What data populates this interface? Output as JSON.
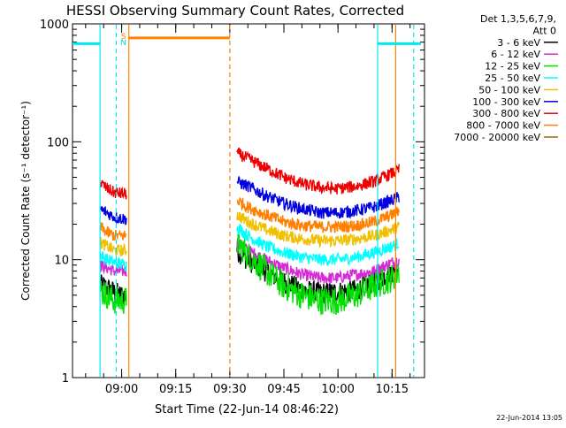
{
  "chart_data": {
    "type": "line",
    "title": "HESSI Observing Summary Count Rates, Corrected",
    "xlabel": "Start Time (22-Jun-14 08:46:22)",
    "ylabel": "Corrected Count Rate (s⁻¹ detector⁻¹)",
    "ylog": true,
    "ylim": [
      1,
      1000
    ],
    "xlim": [
      "08:46:22",
      "10:24:00"
    ],
    "y_ticks": [
      "1",
      "10",
      "100",
      "1000"
    ],
    "x_ticks": [
      {
        "label": "09:00",
        "t": "09:00"
      },
      {
        "label": "09:15",
        "t": "09:15"
      },
      {
        "label": "09:30",
        "t": "09:30"
      },
      {
        "label": "09:45",
        "t": "09:45"
      },
      {
        "label": "10:00",
        "t": "10:00"
      },
      {
        "label": "10:15",
        "t": "10:15"
      }
    ],
    "legend": {
      "header_line1": "Det 1,3,5,6,7,9,",
      "header_line2": "Att 0",
      "placement": "right-outside"
    },
    "series": [
      {
        "name": "3 - 6 keV",
        "color": "#000000",
        "segments": [
          {
            "t": [
              "08:54:00",
              "08:55:00",
              "08:57:00",
              "08:59:30",
              "09:01:20"
            ],
            "v": [
              6,
              6,
              5.5,
              5,
              5
            ]
          },
          {
            "t": [
              "09:32:00",
              "09:35:00",
              "09:40:00",
              "09:45:00",
              "09:50:00",
              "09:55:00",
              "10:00:00",
              "10:05:00",
              "10:10:00",
              "10:15:00",
              "10:17:00"
            ],
            "v": [
              12,
              10,
              8,
              6.5,
              5.5,
              5.2,
              5.3,
              5.5,
              6.5,
              8,
              9
            ]
          }
        ]
      },
      {
        "name": "6 - 12 keV",
        "color": "#d42ad4",
        "segments": [
          {
            "t": [
              "08:54:00",
              "08:56:00",
              "08:58:00",
              "09:01:20"
            ],
            "v": [
              9,
              8.5,
              8,
              8
            ]
          },
          {
            "t": [
              "09:32:00",
              "09:35:00",
              "09:40:00",
              "09:45:00",
              "09:50:00",
              "09:55:00",
              "10:00:00",
              "10:05:00",
              "10:10:00",
              "10:15:00",
              "10:17:00"
            ],
            "v": [
              14,
              12,
              10,
              8.5,
              7.5,
              7,
              7,
              7.5,
              8,
              9.5,
              10
            ]
          }
        ]
      },
      {
        "name": "12 - 25 keV",
        "color": "#00e000",
        "segments": [
          {
            "t": [
              "08:54:00",
              "08:56:00",
              "08:58:00",
              "09:01:20"
            ],
            "v": [
              5.5,
              5,
              4.5,
              4.5
            ]
          },
          {
            "t": [
              "09:32:00",
              "09:35:00",
              "09:40:00",
              "09:45:00",
              "09:50:00",
              "09:55:00",
              "10:00:00",
              "10:05:00",
              "10:10:00",
              "10:15:00",
              "10:17:00"
            ],
            "v": [
              14,
              11,
              8,
              6,
              5,
              4.5,
              4.5,
              5,
              6,
              7,
              8
            ]
          }
        ]
      },
      {
        "name": "25 - 50 keV",
        "color": "#00ffff",
        "segments": [
          {
            "t": [
              "08:54:00",
              "08:56:00",
              "08:58:00",
              "09:01:20"
            ],
            "v": [
              11,
              10,
              9.5,
              9
            ]
          },
          {
            "t": [
              "09:32:00",
              "09:35:00",
              "09:40:00",
              "09:45:00",
              "09:50:00",
              "09:55:00",
              "10:00:00",
              "10:05:00",
              "10:10:00",
              "10:15:00",
              "10:17:00"
            ],
            "v": [
              19,
              16,
              13,
              11.5,
              10.5,
              10,
              10,
              10.5,
              11.5,
              13,
              14
            ]
          }
        ]
      },
      {
        "name": "50 - 100 keV",
        "color": "#f0c000",
        "segments": [
          {
            "t": [
              "08:54:00",
              "08:56:00",
              "08:58:00",
              "09:01:20"
            ],
            "v": [
              14,
              13,
              12,
              12
            ]
          },
          {
            "t": [
              "09:32:00",
              "09:35:00",
              "09:40:00",
              "09:45:00",
              "09:50:00",
              "09:55:00",
              "10:00:00",
              "10:05:00",
              "10:10:00",
              "10:15:00",
              "10:17:00"
            ],
            "v": [
              24,
              21,
              18,
              16,
              15,
              14.5,
              14.5,
              15,
              16,
              18,
              19
            ]
          }
        ]
      },
      {
        "name": "100 - 300 keV",
        "color": "#0000e0",
        "segments": [
          {
            "t": [
              "08:54:00",
              "08:56:00",
              "08:58:00",
              "09:01:20"
            ],
            "v": [
              27,
              25,
              23,
              22
            ]
          },
          {
            "t": [
              "09:32:00",
              "09:35:00",
              "09:40:00",
              "09:45:00",
              "09:50:00",
              "09:55:00",
              "10:00:00",
              "10:05:00",
              "10:10:00",
              "10:15:00",
              "10:17:00"
            ],
            "v": [
              46,
              42,
              35,
              30,
              27,
              25,
              25,
              26,
              28,
              32,
              34
            ]
          }
        ]
      },
      {
        "name": "300 - 800 keV",
        "color": "#ee0000",
        "segments": [
          {
            "t": [
              "08:54:00",
              "08:56:00",
              "08:58:00",
              "09:01:20"
            ],
            "v": [
              45,
              40,
              37,
              36
            ]
          },
          {
            "t": [
              "09:32:00",
              "09:35:00",
              "09:40:00",
              "09:45:00",
              "09:50:00",
              "09:55:00",
              "10:00:00",
              "10:05:00",
              "10:10:00",
              "10:15:00",
              "10:17:00"
            ],
            "v": [
              80,
              72,
              60,
              50,
              44,
              41,
              40,
              42,
              46,
              54,
              58
            ]
          }
        ]
      },
      {
        "name": "800 - 7000 keV",
        "color": "#ff8000",
        "segments": [
          {
            "t": [
              "08:54:00",
              "08:56:00",
              "08:58:00",
              "09:01:20"
            ],
            "v": [
              19,
              17,
              16,
              16
            ]
          },
          {
            "t": [
              "09:32:00",
              "09:35:00",
              "09:40:00",
              "09:45:00",
              "09:50:00",
              "09:55:00",
              "10:00:00",
              "10:05:00",
              "10:10:00",
              "10:15:00",
              "10:17:00"
            ],
            "v": [
              32,
              28,
              24,
              21,
              19.5,
              19,
              19,
              19.5,
              21,
              24,
              26
            ]
          }
        ]
      },
      {
        "name": "7000 - 20000 keV",
        "color": "#9a6a00",
        "segments": []
      }
    ],
    "annotations": {
      "saa_marker_label": "S",
      "night_marker_label": "N",
      "flags": [
        {
          "name": "orange-flag",
          "color": "#ff8000",
          "t0": "09:02:00",
          "t1": "09:30:00",
          "v": 760
        },
        {
          "name": "cyan-flag-left",
          "color": "#00e8f0",
          "t0": "08:46:22",
          "t1": "08:54:00",
          "v": 680
        },
        {
          "name": "cyan-flag-right",
          "color": "#00e8f0",
          "t0": "10:11:00",
          "t1": "10:23:00",
          "v": 680
        }
      ],
      "vlines": [
        {
          "name": "cyan-solid-line-1",
          "color": "#00e8f0",
          "t": "08:54:00",
          "dash": false
        },
        {
          "name": "cyan-dashed-line-1",
          "color": "#00e8f0",
          "t": "08:58:30",
          "dash": true
        },
        {
          "name": "orange-solid-line-1",
          "color": "#ff8000",
          "t": "09:02:00",
          "dash": false
        },
        {
          "name": "orange-dashed-line-1",
          "color": "#ff8000",
          "t": "09:30:00",
          "dash": true
        },
        {
          "name": "cyan-solid-line-2",
          "color": "#00e8f0",
          "t": "10:11:00",
          "dash": false
        },
        {
          "name": "orange-solid-line-2",
          "color": "#ff8000",
          "t": "10:16:00",
          "dash": false
        },
        {
          "name": "cyan-dashed-line-2",
          "color": "#00e8f0",
          "t": "10:21:00",
          "dash": true
        }
      ]
    },
    "footer_date": "22-Jun-2014 13:05"
  }
}
